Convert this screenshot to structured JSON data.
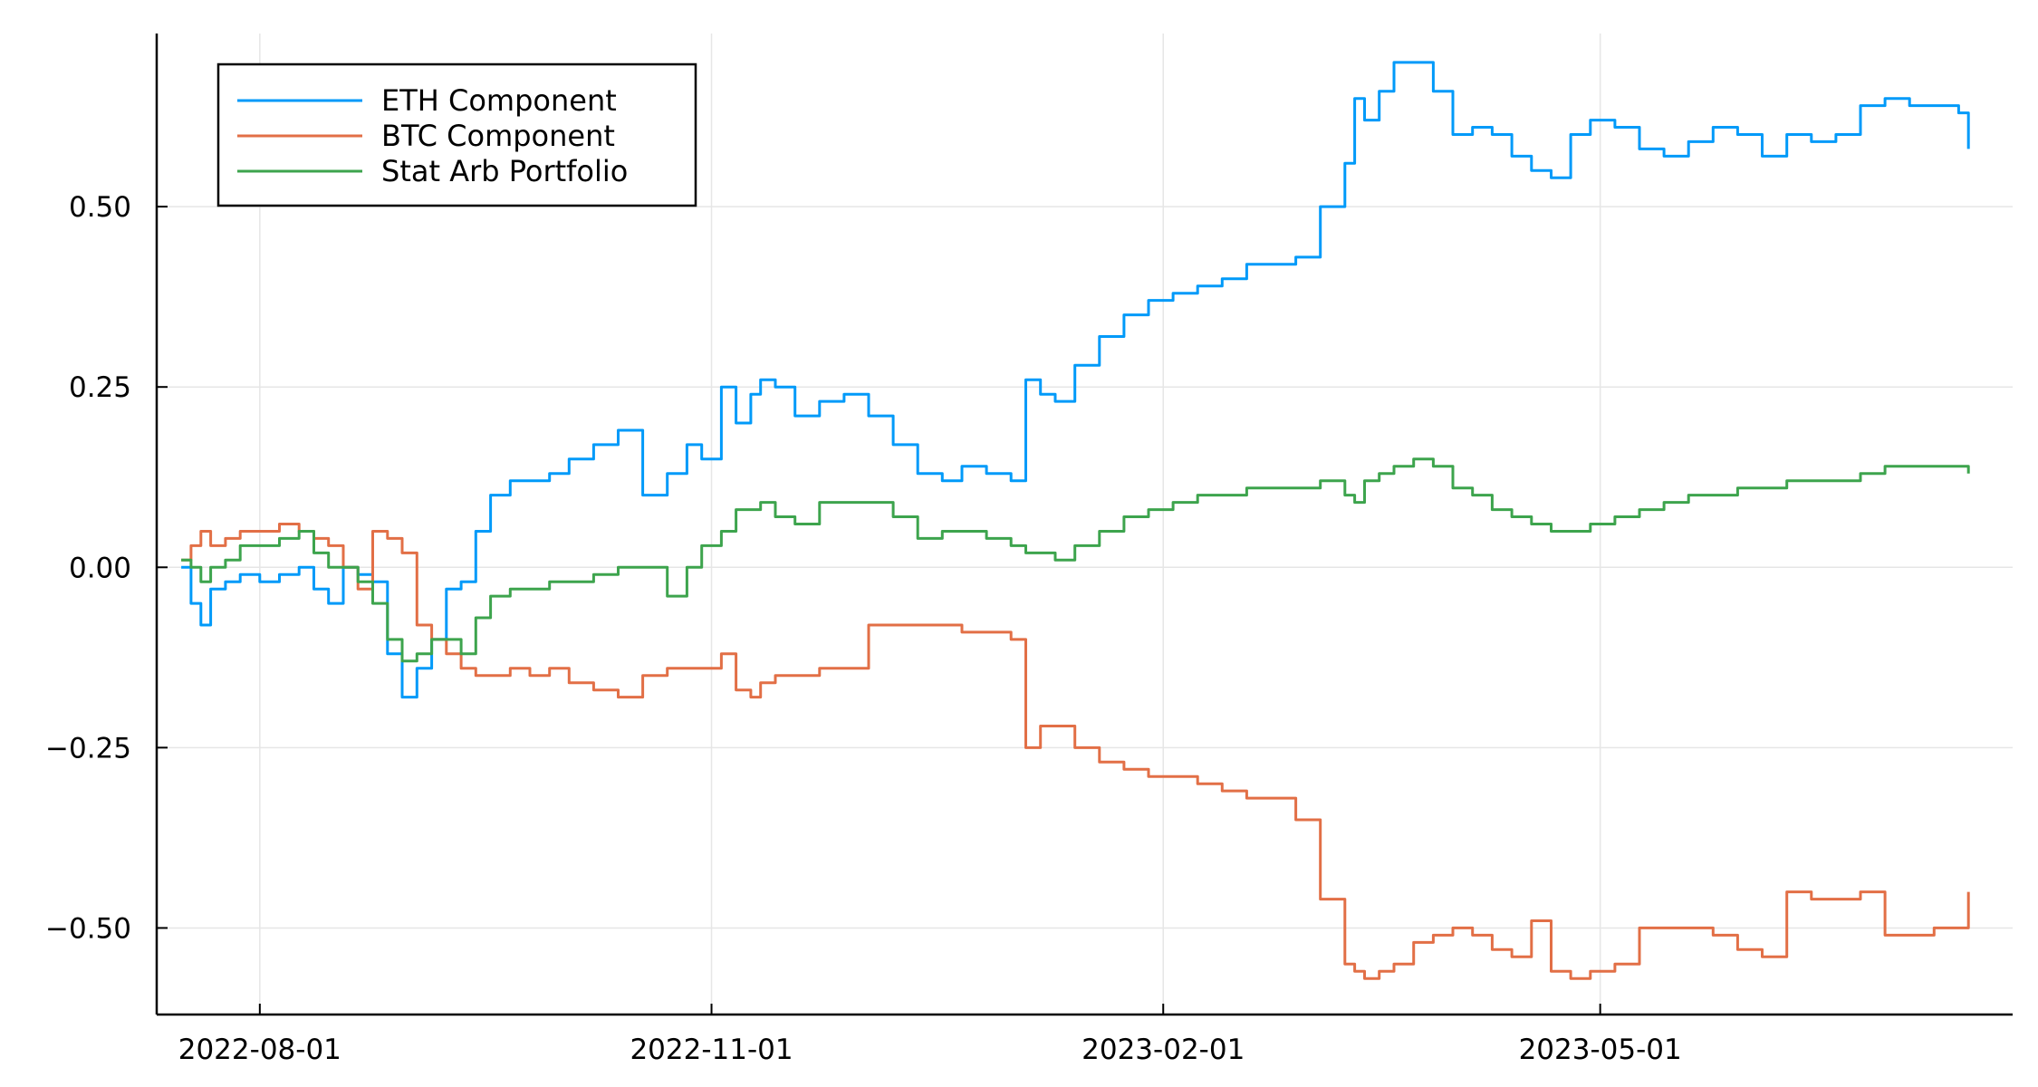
{
  "chart_data": {
    "type": "line",
    "title": "",
    "xlabel": "",
    "ylabel": "",
    "xlim": [
      "2022-07-11",
      "2023-07-24"
    ],
    "ylim": [
      -0.62,
      0.74
    ],
    "x_ticks": [
      "2022-08-01",
      "2022-11-01",
      "2023-02-01",
      "2023-05-01"
    ],
    "y_ticks": [
      0.5,
      0.25,
      0.0,
      -0.25,
      -0.5
    ],
    "y_tick_labels": [
      "0.50",
      "0.25",
      "0.00",
      "−0.25",
      "−0.50"
    ],
    "grid": true,
    "legend_position": "top-left",
    "colors": {
      "ETH Component": "#009af9",
      "BTC Component": "#e26f46",
      "Stat Arb Portfolio": "#3da44d"
    },
    "series": [
      {
        "name": "ETH Component",
        "color": "#009af9",
        "x": [
          "2022-07-16",
          "2022-07-18",
          "2022-07-20",
          "2022-07-22",
          "2022-07-25",
          "2022-07-28",
          "2022-08-01",
          "2022-08-05",
          "2022-08-09",
          "2022-08-12",
          "2022-08-15",
          "2022-08-18",
          "2022-08-21",
          "2022-08-24",
          "2022-08-27",
          "2022-08-30",
          "2022-09-02",
          "2022-09-05",
          "2022-09-08",
          "2022-09-11",
          "2022-09-14",
          "2022-09-17",
          "2022-09-21",
          "2022-09-25",
          "2022-09-29",
          "2022-10-03",
          "2022-10-08",
          "2022-10-13",
          "2022-10-18",
          "2022-10-23",
          "2022-10-27",
          "2022-10-30",
          "2022-11-03",
          "2022-11-06",
          "2022-11-09",
          "2022-11-11",
          "2022-11-14",
          "2022-11-18",
          "2022-11-23",
          "2022-11-28",
          "2022-12-03",
          "2022-12-08",
          "2022-12-13",
          "2022-12-18",
          "2022-12-22",
          "2022-12-27",
          "2023-01-01",
          "2023-01-04",
          "2023-01-07",
          "2023-01-10",
          "2023-01-14",
          "2023-01-19",
          "2023-01-24",
          "2023-01-29",
          "2023-02-03",
          "2023-02-08",
          "2023-02-13",
          "2023-02-18",
          "2023-02-23",
          "2023-02-28",
          "2023-03-05",
          "2023-03-10",
          "2023-03-12",
          "2023-03-14",
          "2023-03-17",
          "2023-03-20",
          "2023-03-24",
          "2023-03-28",
          "2023-04-01",
          "2023-04-05",
          "2023-04-09",
          "2023-04-13",
          "2023-04-17",
          "2023-04-21",
          "2023-04-25",
          "2023-04-29",
          "2023-05-04",
          "2023-05-09",
          "2023-05-14",
          "2023-05-19",
          "2023-05-24",
          "2023-05-29",
          "2023-06-03",
          "2023-06-08",
          "2023-06-13",
          "2023-06-18",
          "2023-06-23",
          "2023-06-28",
          "2023-07-03",
          "2023-07-08",
          "2023-07-13",
          "2023-07-15"
        ],
        "y": [
          0.0,
          -0.05,
          -0.08,
          -0.03,
          -0.02,
          -0.01,
          -0.02,
          -0.01,
          0.0,
          -0.03,
          -0.05,
          0.0,
          -0.01,
          -0.02,
          -0.12,
          -0.18,
          -0.14,
          -0.1,
          -0.03,
          -0.02,
          0.05,
          0.1,
          0.12,
          0.12,
          0.13,
          0.15,
          0.17,
          0.19,
          0.1,
          0.13,
          0.17,
          0.15,
          0.25,
          0.2,
          0.24,
          0.26,
          0.25,
          0.21,
          0.23,
          0.24,
          0.21,
          0.17,
          0.13,
          0.12,
          0.14,
          0.13,
          0.12,
          0.26,
          0.24,
          0.23,
          0.28,
          0.32,
          0.35,
          0.37,
          0.38,
          0.39,
          0.4,
          0.42,
          0.42,
          0.43,
          0.5,
          0.56,
          0.65,
          0.62,
          0.66,
          0.7,
          0.7,
          0.66,
          0.6,
          0.61,
          0.6,
          0.57,
          0.55,
          0.54,
          0.6,
          0.62,
          0.61,
          0.58,
          0.57,
          0.59,
          0.61,
          0.6,
          0.57,
          0.6,
          0.59,
          0.6,
          0.64,
          0.65,
          0.64,
          0.64,
          0.63,
          0.58
        ]
      },
      {
        "name": "BTC Component",
        "color": "#e26f46",
        "x": [
          "2022-07-16",
          "2022-07-18",
          "2022-07-20",
          "2022-07-22",
          "2022-07-25",
          "2022-07-28",
          "2022-08-01",
          "2022-08-05",
          "2022-08-09",
          "2022-08-12",
          "2022-08-15",
          "2022-08-18",
          "2022-08-21",
          "2022-08-24",
          "2022-08-27",
          "2022-08-30",
          "2022-09-02",
          "2022-09-05",
          "2022-09-08",
          "2022-09-11",
          "2022-09-14",
          "2022-09-17",
          "2022-09-21",
          "2022-09-25",
          "2022-09-29",
          "2022-10-03",
          "2022-10-08",
          "2022-10-13",
          "2022-10-18",
          "2022-10-23",
          "2022-10-27",
          "2022-10-30",
          "2022-11-03",
          "2022-11-06",
          "2022-11-09",
          "2022-11-11",
          "2022-11-14",
          "2022-11-18",
          "2022-11-23",
          "2022-11-28",
          "2022-12-03",
          "2022-12-08",
          "2022-12-13",
          "2022-12-18",
          "2022-12-22",
          "2022-12-27",
          "2023-01-01",
          "2023-01-04",
          "2023-01-07",
          "2023-01-10",
          "2023-01-14",
          "2023-01-19",
          "2023-01-24",
          "2023-01-29",
          "2023-02-03",
          "2023-02-08",
          "2023-02-13",
          "2023-02-18",
          "2023-02-23",
          "2023-02-28",
          "2023-03-05",
          "2023-03-10",
          "2023-03-12",
          "2023-03-14",
          "2023-03-17",
          "2023-03-20",
          "2023-03-24",
          "2023-03-28",
          "2023-04-01",
          "2023-04-05",
          "2023-04-09",
          "2023-04-13",
          "2023-04-17",
          "2023-04-21",
          "2023-04-25",
          "2023-04-29",
          "2023-05-04",
          "2023-05-09",
          "2023-05-14",
          "2023-05-19",
          "2023-05-24",
          "2023-05-29",
          "2023-06-03",
          "2023-06-08",
          "2023-06-13",
          "2023-06-18",
          "2023-06-23",
          "2023-06-28",
          "2023-07-03",
          "2023-07-08",
          "2023-07-13",
          "2023-07-15"
        ],
        "y": [
          0.01,
          0.03,
          0.05,
          0.03,
          0.04,
          0.05,
          0.05,
          0.06,
          0.05,
          0.04,
          0.03,
          0.0,
          -0.03,
          0.05,
          0.04,
          0.02,
          -0.08,
          -0.1,
          -0.12,
          -0.14,
          -0.15,
          -0.15,
          -0.14,
          -0.15,
          -0.14,
          -0.16,
          -0.17,
          -0.18,
          -0.15,
          -0.14,
          -0.14,
          -0.14,
          -0.12,
          -0.17,
          -0.18,
          -0.16,
          -0.15,
          -0.15,
          -0.14,
          -0.14,
          -0.08,
          -0.08,
          -0.08,
          -0.08,
          -0.09,
          -0.09,
          -0.1,
          -0.25,
          -0.22,
          -0.22,
          -0.25,
          -0.27,
          -0.28,
          -0.29,
          -0.29,
          -0.3,
          -0.31,
          -0.32,
          -0.32,
          -0.35,
          -0.46,
          -0.55,
          -0.56,
          -0.57,
          -0.56,
          -0.55,
          -0.52,
          -0.51,
          -0.5,
          -0.51,
          -0.53,
          -0.54,
          -0.49,
          -0.56,
          -0.57,
          -0.56,
          -0.55,
          -0.5,
          -0.5,
          -0.5,
          -0.51,
          -0.53,
          -0.54,
          -0.45,
          -0.46,
          -0.46,
          -0.45,
          -0.51,
          -0.51,
          -0.5,
          -0.5,
          -0.45
        ]
      },
      {
        "name": "Stat Arb Portfolio",
        "color": "#3da44d",
        "x": [
          "2022-07-16",
          "2022-07-18",
          "2022-07-20",
          "2022-07-22",
          "2022-07-25",
          "2022-07-28",
          "2022-08-01",
          "2022-08-05",
          "2022-08-09",
          "2022-08-12",
          "2022-08-15",
          "2022-08-18",
          "2022-08-21",
          "2022-08-24",
          "2022-08-27",
          "2022-08-30",
          "2022-09-02",
          "2022-09-05",
          "2022-09-08",
          "2022-09-11",
          "2022-09-14",
          "2022-09-17",
          "2022-09-21",
          "2022-09-25",
          "2022-09-29",
          "2022-10-03",
          "2022-10-08",
          "2022-10-13",
          "2022-10-18",
          "2022-10-23",
          "2022-10-27",
          "2022-10-30",
          "2022-11-03",
          "2022-11-06",
          "2022-11-09",
          "2022-11-11",
          "2022-11-14",
          "2022-11-18",
          "2022-11-23",
          "2022-11-28",
          "2022-12-03",
          "2022-12-08",
          "2022-12-13",
          "2022-12-18",
          "2022-12-22",
          "2022-12-27",
          "2023-01-01",
          "2023-01-04",
          "2023-01-07",
          "2023-01-10",
          "2023-01-14",
          "2023-01-19",
          "2023-01-24",
          "2023-01-29",
          "2023-02-03",
          "2023-02-08",
          "2023-02-13",
          "2023-02-18",
          "2023-02-23",
          "2023-02-28",
          "2023-03-05",
          "2023-03-10",
          "2023-03-12",
          "2023-03-14",
          "2023-03-17",
          "2023-03-20",
          "2023-03-24",
          "2023-03-28",
          "2023-04-01",
          "2023-04-05",
          "2023-04-09",
          "2023-04-13",
          "2023-04-17",
          "2023-04-21",
          "2023-04-25",
          "2023-04-29",
          "2023-05-04",
          "2023-05-09",
          "2023-05-14",
          "2023-05-19",
          "2023-05-24",
          "2023-05-29",
          "2023-06-03",
          "2023-06-08",
          "2023-06-13",
          "2023-06-18",
          "2023-06-23",
          "2023-06-28",
          "2023-07-03",
          "2023-07-08",
          "2023-07-13",
          "2023-07-15"
        ],
        "y": [
          0.01,
          0.0,
          -0.02,
          0.0,
          0.01,
          0.03,
          0.03,
          0.04,
          0.05,
          0.02,
          0.0,
          0.0,
          -0.02,
          -0.05,
          -0.1,
          -0.13,
          -0.12,
          -0.1,
          -0.1,
          -0.12,
          -0.07,
          -0.04,
          -0.03,
          -0.03,
          -0.02,
          -0.02,
          -0.01,
          0.0,
          0.0,
          -0.04,
          0.0,
          0.03,
          0.05,
          0.08,
          0.08,
          0.09,
          0.07,
          0.06,
          0.09,
          0.09,
          0.09,
          0.07,
          0.04,
          0.05,
          0.05,
          0.04,
          0.03,
          0.02,
          0.02,
          0.01,
          0.03,
          0.05,
          0.07,
          0.08,
          0.09,
          0.1,
          0.1,
          0.11,
          0.11,
          0.11,
          0.12,
          0.1,
          0.09,
          0.12,
          0.13,
          0.14,
          0.15,
          0.14,
          0.11,
          0.1,
          0.08,
          0.07,
          0.06,
          0.05,
          0.05,
          0.06,
          0.07,
          0.08,
          0.09,
          0.1,
          0.1,
          0.11,
          0.11,
          0.12,
          0.12,
          0.12,
          0.13,
          0.14,
          0.14,
          0.14,
          0.14,
          0.13
        ]
      }
    ]
  }
}
